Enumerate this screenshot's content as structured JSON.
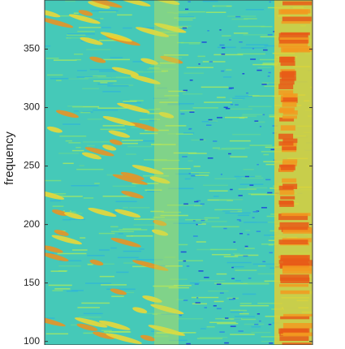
{
  "chart_data": {
    "type": "spectrogram",
    "ylabel": "frequency",
    "ylim": [
      97,
      392
    ],
    "yticks": [
      100,
      150,
      200,
      250,
      300,
      350
    ]
  }
}
